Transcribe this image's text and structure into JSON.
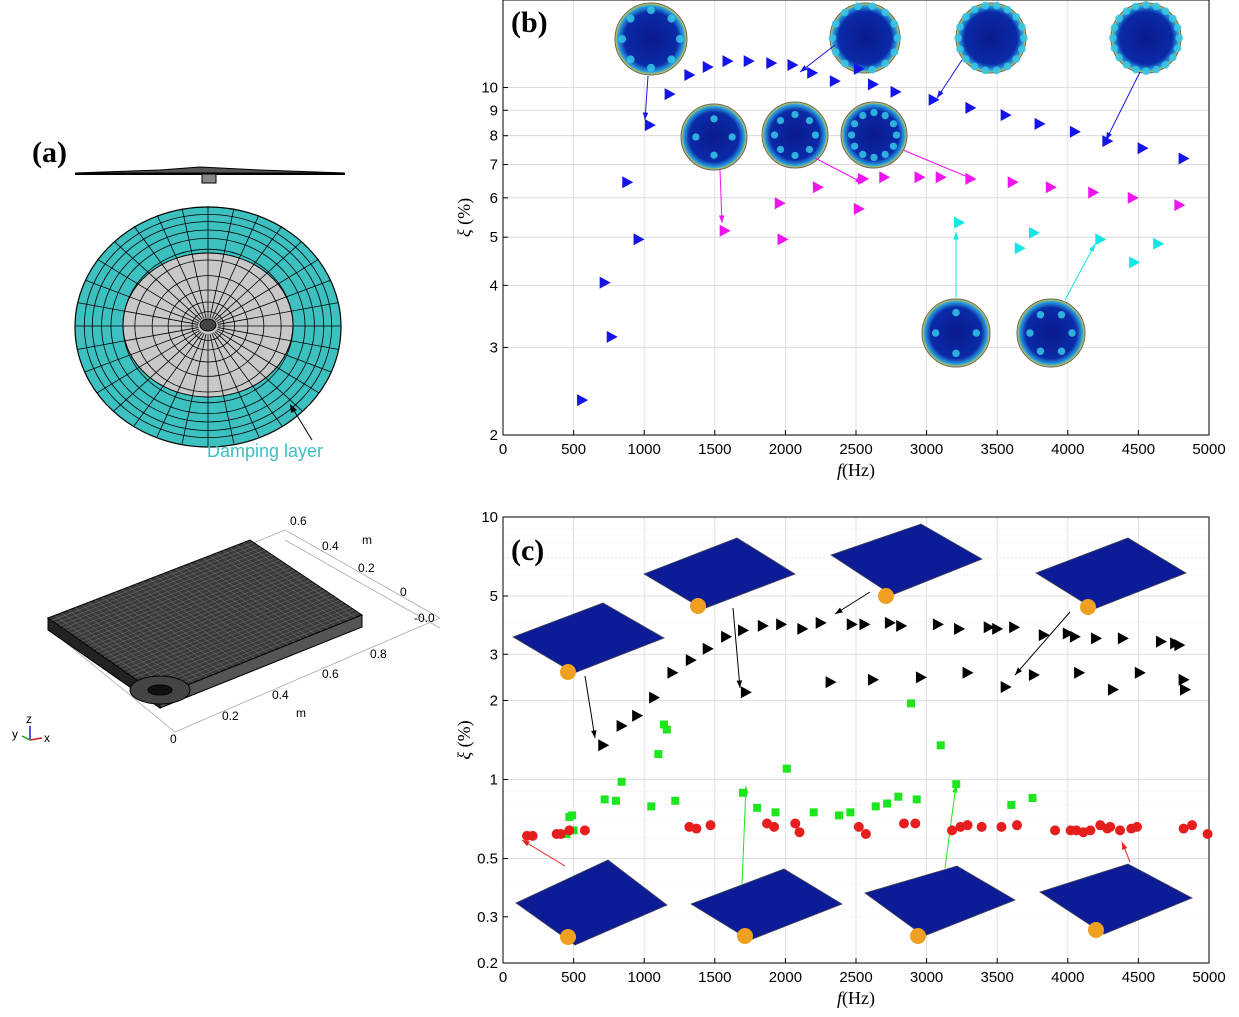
{
  "panel_a": {
    "label": "(a)",
    "annotation": "Damping layer",
    "colors": {
      "damping": "#3cc0c0",
      "inner": "#c8c8c8",
      "mesh": "#000000"
    }
  },
  "panel_mesh": {
    "axis_unit": "m",
    "x_ticks": [
      "0",
      "0.2",
      "0.4",
      "0.6",
      "0.8"
    ],
    "y_ticks": [
      "0",
      "0.2",
      "0.4",
      "0.6"
    ],
    "z_tick": "-0.0",
    "triad": {
      "x": "x",
      "y": "y",
      "z": "z"
    }
  },
  "chart_data": [
    {
      "panel": "(b)",
      "type": "scatter",
      "ylabel_sym": "ξ",
      "ylabel_unit": "(%)",
      "xlabel_sym": "f",
      "xlabel_unit": "(Hz)",
      "xlim": [
        0,
        5000
      ],
      "ylim": [
        2,
        15
      ],
      "yscale": "log",
      "x_ticks": [
        0,
        500,
        1000,
        1500,
        2000,
        2500,
        3000,
        3500,
        4000,
        4500,
        5000
      ],
      "y_ticks": [
        2,
        3,
        4,
        5,
        6,
        7,
        8,
        9,
        10
      ],
      "grid": true,
      "series": [
        {
          "marker": "triangle-right",
          "color": "#1414e6",
          "x": [
            560,
            720,
            770,
            960,
            880,
            1040,
            1180,
            1320,
            1450,
            1590,
            1740,
            1900,
            2050,
            2190,
            2350,
            2520,
            2620,
            2780,
            3050,
            3310,
            3560,
            3800,
            4050,
            4280,
            4530,
            4820
          ],
          "y": [
            2.35,
            4.05,
            3.15,
            4.95,
            6.45,
            8.4,
            9.7,
            10.6,
            11.0,
            11.3,
            11.3,
            11.2,
            11.1,
            10.7,
            10.3,
            10.9,
            10.15,
            9.8,
            9.45,
            9.1,
            8.8,
            8.45,
            8.15,
            7.8,
            7.55,
            7.2
          ]
        },
        {
          "marker": "triangle-right",
          "color": "#f014f0",
          "x": [
            1570,
            1980,
            1960,
            2230,
            2520,
            2550,
            2700,
            2950,
            3100,
            3310,
            3610,
            3880,
            4180,
            4460,
            4790
          ],
          "y": [
            5.15,
            4.95,
            5.85,
            6.3,
            5.7,
            6.55,
            6.6,
            6.6,
            6.6,
            6.55,
            6.45,
            6.3,
            6.15,
            6.0,
            5.8
          ]
        },
        {
          "marker": "triangle-right",
          "color": "#14e6e6",
          "x": [
            3230,
            3660,
            3760,
            4230,
            4470,
            4640
          ],
          "y": [
            5.35,
            4.75,
            5.1,
            4.95,
            4.45,
            4.85
          ]
        }
      ]
    },
    {
      "panel": "(c)",
      "type": "scatter",
      "ylabel_sym": "ξ",
      "ylabel_unit": "(%)",
      "xlabel_sym": "f",
      "xlabel_unit": "(Hz)",
      "xlim": [
        0,
        5000
      ],
      "ylim": [
        0.2,
        10
      ],
      "yscale": "log",
      "x_ticks": [
        0,
        500,
        1000,
        1500,
        2000,
        2500,
        3000,
        3500,
        4000,
        4500,
        5000
      ],
      "y_ticks": [
        0.2,
        0.3,
        0.5,
        1,
        2,
        3,
        5,
        10
      ],
      "grid": true,
      "series": [
        {
          "marker": "triangle-right",
          "color": "#000000",
          "x": [
            710,
            840,
            950,
            1070,
            1200,
            1330,
            1450,
            1580,
            1700,
            1720,
            1840,
            1970,
            2120,
            2250,
            2320,
            2470,
            2560,
            2620,
            2740,
            2820,
            2960,
            3080,
            3230,
            3290,
            3440,
            3500,
            3560,
            3620,
            3760,
            3830,
            4000,
            4050,
            4080,
            4200,
            4320,
            4390,
            4510,
            4660,
            4760,
            4790,
            4820,
            4830
          ],
          "y": [
            1.35,
            1.6,
            1.75,
            2.05,
            2.55,
            2.85,
            3.15,
            3.5,
            3.7,
            2.15,
            3.85,
            3.9,
            3.75,
            3.95,
            2.35,
            3.9,
            3.9,
            2.4,
            3.95,
            3.85,
            2.45,
            3.9,
            3.75,
            2.55,
            3.8,
            3.75,
            2.25,
            3.8,
            2.5,
            3.55,
            3.6,
            3.5,
            2.55,
            3.45,
            2.2,
            3.45,
            2.55,
            3.35,
            3.3,
            3.25,
            2.4,
            2.2
          ]
        },
        {
          "marker": "square",
          "color": "#1ee61e",
          "x": [
            450,
            470,
            490,
            500,
            720,
            800,
            840,
            1050,
            1100,
            1140,
            1160,
            1220,
            1700,
            1800,
            1930,
            2010,
            2200,
            2380,
            2460,
            2640,
            2720,
            2800,
            2890,
            2930,
            3100,
            3210,
            3600,
            3750
          ],
          "y": [
            0.62,
            0.72,
            0.73,
            0.64,
            0.84,
            0.83,
            0.98,
            0.79,
            1.25,
            1.62,
            1.55,
            0.83,
            0.89,
            0.78,
            0.75,
            1.1,
            0.75,
            0.73,
            0.75,
            0.79,
            0.81,
            0.86,
            1.95,
            0.84,
            1.35,
            0.96,
            0.8,
            0.85
          ],
          "note": ""
        },
        {
          "marker": "circle",
          "color": "#e61e1e",
          "x": [
            170,
            210,
            380,
            410,
            470,
            580,
            1320,
            1370,
            1470,
            1870,
            1920,
            2070,
            2100,
            2520,
            2570,
            2840,
            2920,
            3180,
            3240,
            3290,
            3390,
            3530,
            3640,
            3910,
            4020,
            4060,
            4110,
            4160,
            4230,
            4280,
            4300,
            4370,
            4450,
            4490,
            4820,
            4880,
            4990
          ],
          "y": [
            0.61,
            0.61,
            0.62,
            0.62,
            0.64,
            0.64,
            0.66,
            0.65,
            0.67,
            0.68,
            0.66,
            0.68,
            0.63,
            0.66,
            0.62,
            0.68,
            0.68,
            0.64,
            0.66,
            0.67,
            0.66,
            0.66,
            0.67,
            0.64,
            0.64,
            0.64,
            0.63,
            0.64,
            0.67,
            0.65,
            0.66,
            0.64,
            0.65,
            0.66,
            0.65,
            0.67,
            0.62
          ]
        }
      ]
    }
  ]
}
